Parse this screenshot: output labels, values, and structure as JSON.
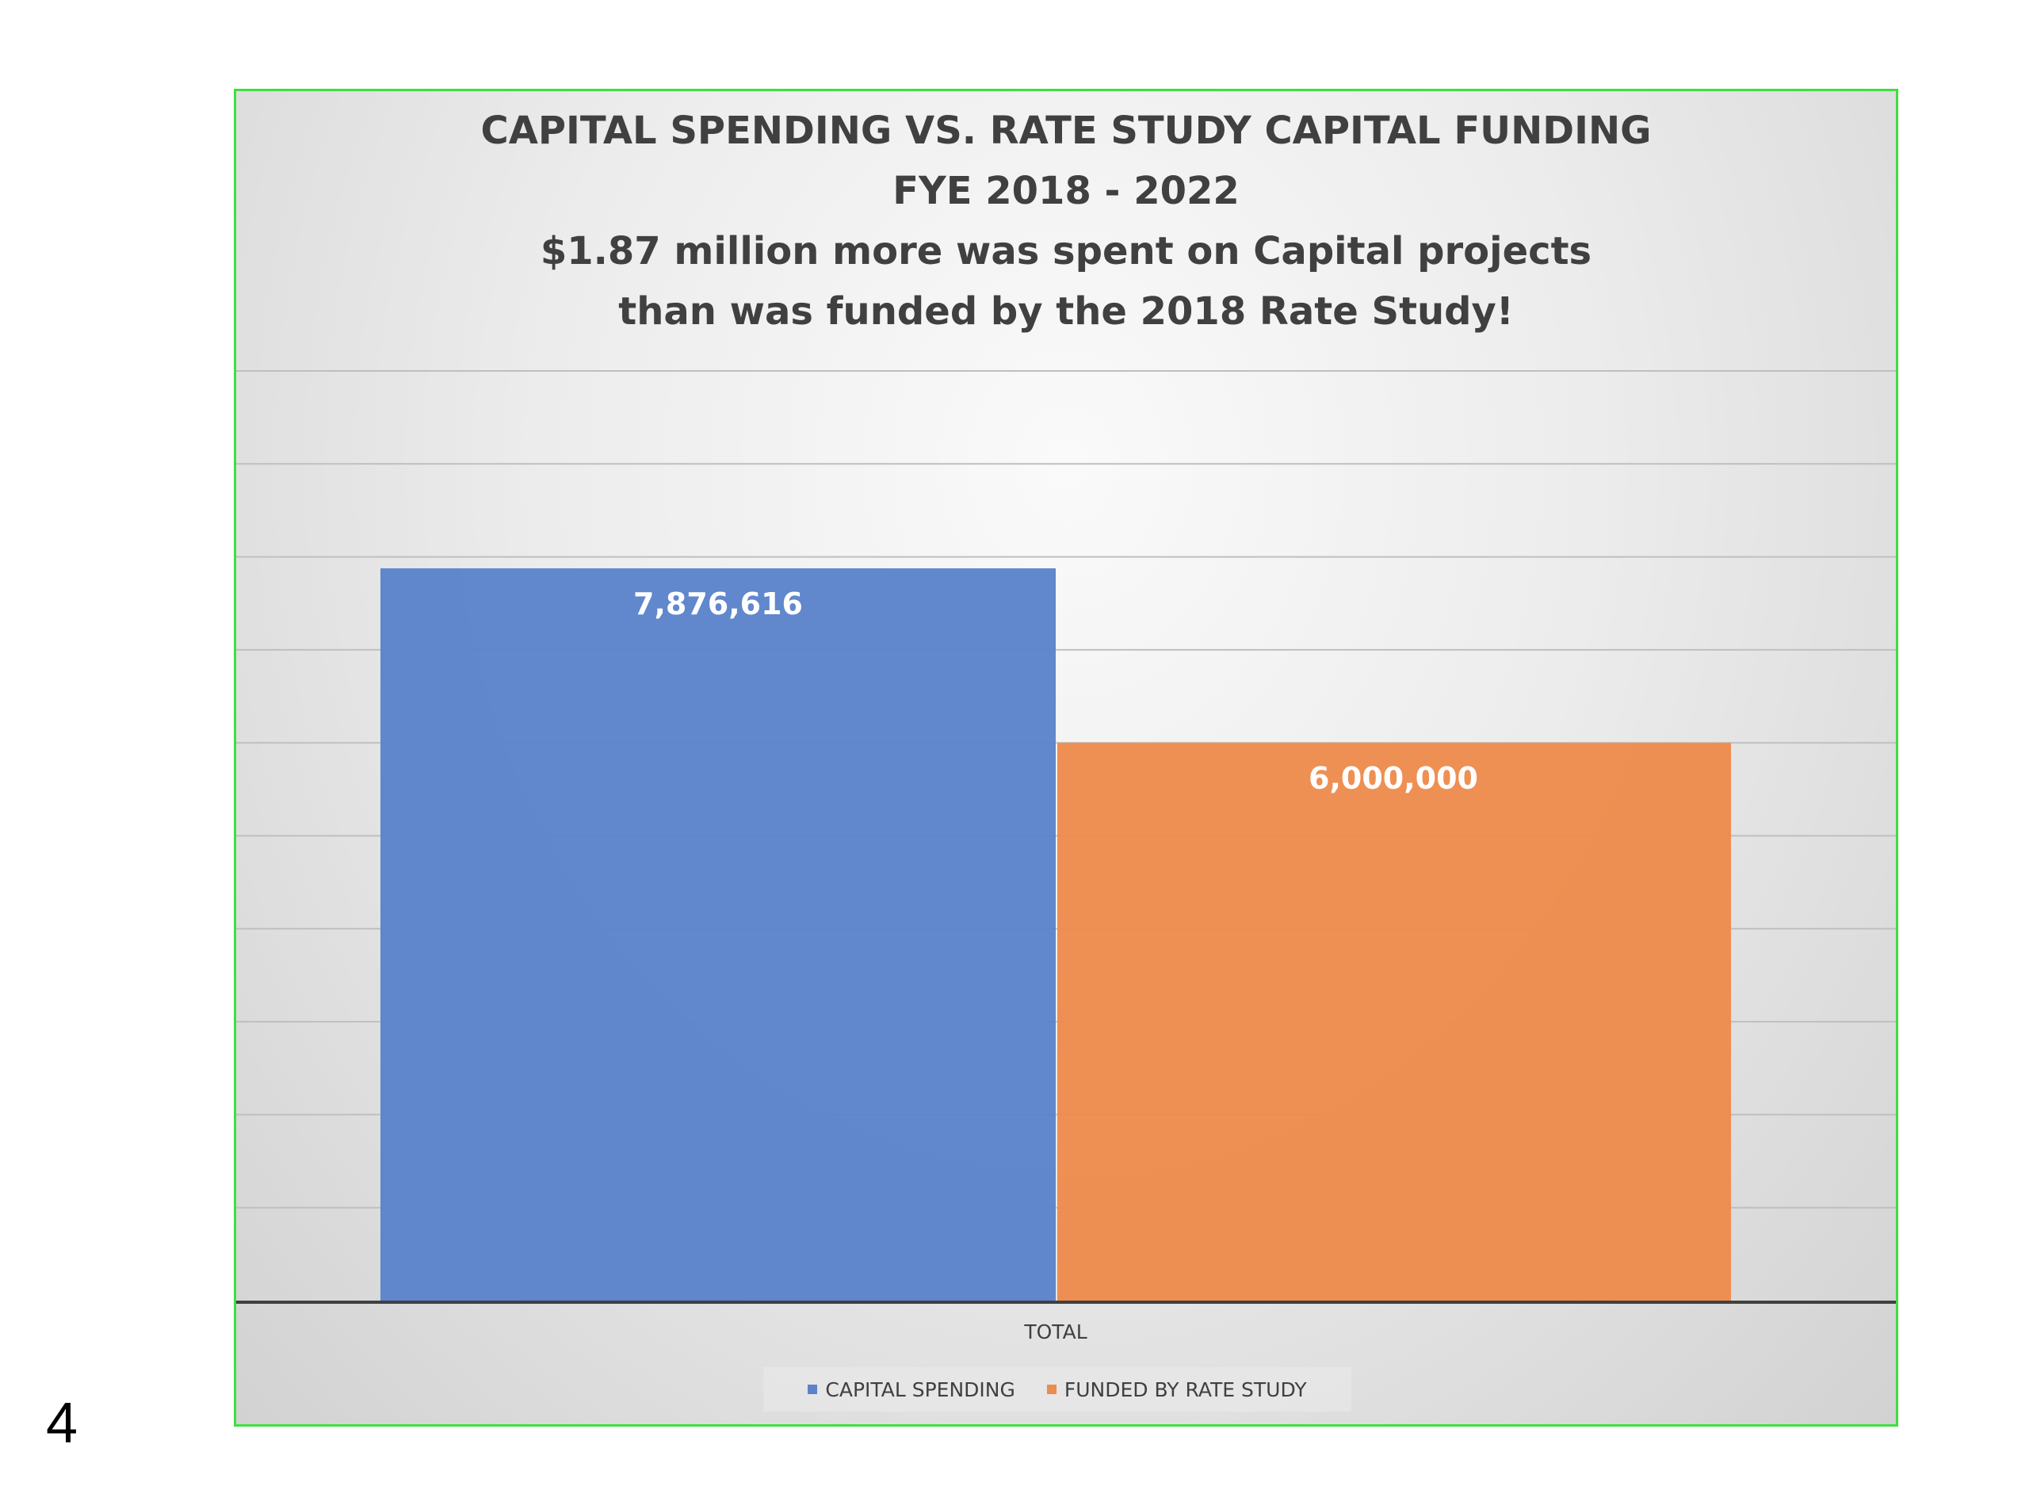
{
  "page_number": "4",
  "chart_data": {
    "type": "bar",
    "title": "CAPITAL SPENDING VS. RATE STUDY CAPITAL FUNDING",
    "title_line2": "FYE 2018 - 2022",
    "subtitle": "$1.87 million more was spent on Capital projects",
    "subtitle_line2": "than was funded by the 2018 Rate Study!",
    "categories": [
      "TOTAL"
    ],
    "series": [
      {
        "name": "CAPITAL SPENDING",
        "values": [
          7876616
        ],
        "label": "7,876,616",
        "color": "#5b82cb"
      },
      {
        "name": "FUNDED BY RATE STUDY",
        "values": [
          6000000
        ],
        "label": "6,000,000",
        "color": "#ed8b4c"
      }
    ],
    "ylim": [
      0,
      10000000
    ],
    "y_grid_step": 1000000,
    "grid": true,
    "y_tick_labels_shown": false,
    "legend": "bottom-center",
    "colors": {
      "frame_border": "#3ee03e",
      "title_text": "#404040",
      "gridline": "#bfbfbf",
      "axis": "#404040"
    }
  }
}
